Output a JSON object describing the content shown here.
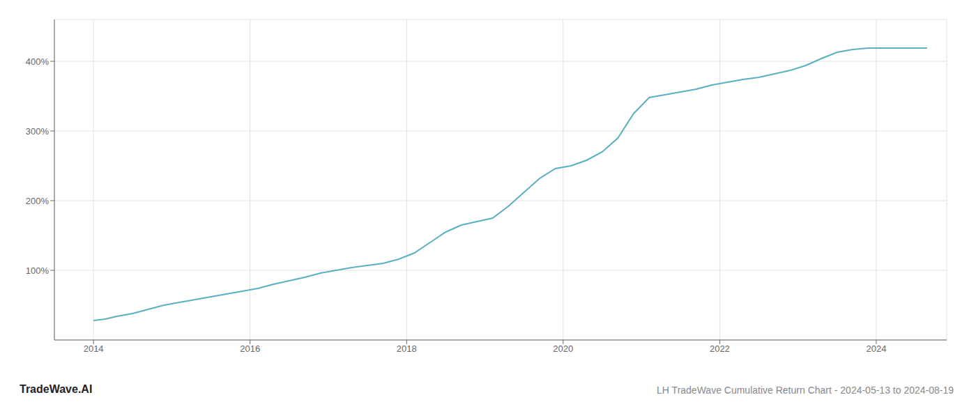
{
  "chart_data": {
    "type": "line",
    "title": "LH TradeWave Cumulative Return Chart - 2024-05-13 to 2024-08-19",
    "annotations": [
      "TradeWave.AI"
    ],
    "color": "#5aafc0",
    "grid": true,
    "xlim": [
      2013.5,
      2024.9
    ],
    "xticks": [
      2014,
      2016,
      2018,
      2020,
      2022,
      2024
    ],
    "ylim": [
      0,
      460
    ],
    "yticks": [
      {
        "value": 100,
        "label": "100%"
      },
      {
        "value": 200,
        "label": "200%"
      },
      {
        "value": 300,
        "label": "300%"
      },
      {
        "value": 400,
        "label": "400%"
      }
    ],
    "x": [
      2014.0,
      2014.15,
      2014.3,
      2014.5,
      2014.7,
      2014.9,
      2015.1,
      2015.3,
      2015.5,
      2015.7,
      2015.9,
      2016.1,
      2016.3,
      2016.5,
      2016.7,
      2016.9,
      2017.1,
      2017.3,
      2017.5,
      2017.7,
      2017.9,
      2018.1,
      2018.3,
      2018.5,
      2018.7,
      2018.9,
      2019.1,
      2019.3,
      2019.5,
      2019.7,
      2019.9,
      2020.1,
      2020.3,
      2020.5,
      2020.7,
      2020.9,
      2021.1,
      2021.3,
      2021.5,
      2021.7,
      2021.9,
      2022.1,
      2022.3,
      2022.5,
      2022.7,
      2022.9,
      2023.1,
      2023.3,
      2023.5,
      2023.7,
      2023.9,
      2024.1,
      2024.3,
      2024.5,
      2024.65
    ],
    "values": [
      28,
      30,
      34,
      38,
      44,
      50,
      54,
      58,
      62,
      66,
      70,
      74,
      80,
      85,
      90,
      96,
      100,
      104,
      107,
      110,
      116,
      125,
      140,
      155,
      165,
      170,
      175,
      192,
      212,
      232,
      246,
      250,
      258,
      270,
      290,
      325,
      348,
      352,
      356,
      360,
      366,
      370,
      374,
      377,
      382,
      387,
      394,
      404,
      413,
      417,
      419,
      419,
      419,
      419,
      419
    ]
  }
}
